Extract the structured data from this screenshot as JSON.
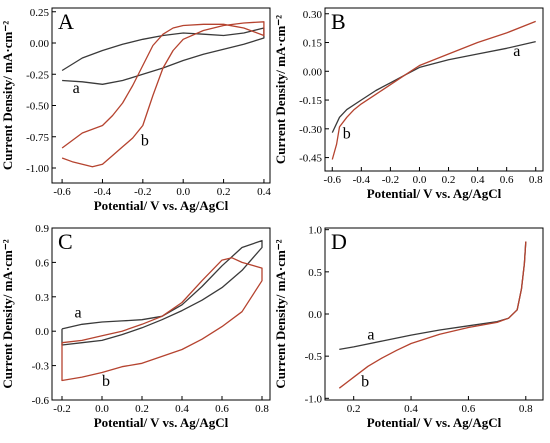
{
  "chart_data": [
    {
      "panel": "A",
      "type": "line",
      "xlabel": "Potential/ V vs. Ag/AgCl",
      "ylabel": "Current Density/ mA·cm⁻²",
      "xlim": [
        -0.65,
        0.43
      ],
      "ylim": [
        -1.12,
        0.28
      ],
      "xticks": [
        -0.6,
        -0.4,
        -0.2,
        0.0,
        0.2,
        0.4
      ],
      "xtick_labels": [
        "-0.6",
        "-0.4",
        "-0.2",
        "0.0",
        "0.2",
        "0.4"
      ],
      "yticks": [
        -1.0,
        -0.75,
        -0.5,
        -0.25,
        0.0,
        0.25
      ],
      "ytick_labels": [
        "-1.00",
        "-0.75",
        "-0.50",
        "-0.25",
        "0.00",
        "0.25"
      ],
      "series": [
        {
          "name": "a",
          "color": "#3a3a3a",
          "label_at": [
            -0.53,
            -0.4
          ],
          "x": [
            -0.6,
            -0.5,
            -0.4,
            -0.3,
            -0.2,
            -0.1,
            0.0,
            0.1,
            0.2,
            0.3,
            0.4,
            0.4,
            0.3,
            0.2,
            0.1,
            0.0,
            -0.1,
            -0.2,
            -0.3,
            -0.4,
            -0.5,
            -0.6
          ],
          "y": [
            -0.3,
            -0.31,
            -0.33,
            -0.3,
            -0.25,
            -0.2,
            -0.14,
            -0.09,
            -0.05,
            -0.01,
            0.04,
            0.12,
            0.08,
            0.06,
            0.07,
            0.08,
            0.06,
            0.03,
            -0.01,
            -0.06,
            -0.12,
            -0.22
          ]
        },
        {
          "name": "b",
          "color": "#b5432f",
          "label_at": [
            -0.19,
            -0.82
          ],
          "x": [
            -0.6,
            -0.55,
            -0.5,
            -0.45,
            -0.4,
            -0.35,
            -0.3,
            -0.25,
            -0.2,
            -0.15,
            -0.1,
            -0.05,
            0.0,
            0.1,
            0.2,
            0.3,
            0.4,
            0.4,
            0.3,
            0.2,
            0.1,
            0.0,
            -0.05,
            -0.1,
            -0.15,
            -0.2,
            -0.25,
            -0.3,
            -0.35,
            -0.4,
            -0.5,
            -0.6
          ],
          "y": [
            -0.92,
            -0.95,
            -0.97,
            -0.99,
            -0.97,
            -0.9,
            -0.83,
            -0.76,
            -0.66,
            -0.42,
            -0.2,
            -0.06,
            0.03,
            0.1,
            0.14,
            0.16,
            0.17,
            0.06,
            0.12,
            0.15,
            0.15,
            0.14,
            0.12,
            0.07,
            -0.02,
            -0.18,
            -0.34,
            -0.48,
            -0.58,
            -0.66,
            -0.72,
            -0.84
          ]
        }
      ]
    },
    {
      "panel": "B",
      "type": "line",
      "xlabel": "Potential/ V vs. Ag/AgCl",
      "ylabel": "Current Density/ mA·cm⁻²",
      "xlim": [
        -0.65,
        0.85
      ],
      "ylim": [
        -0.52,
        0.33
      ],
      "xticks": [
        -0.6,
        -0.4,
        -0.2,
        0.0,
        0.2,
        0.4,
        0.6,
        0.8
      ],
      "xtick_labels": [
        "-0.6",
        "-0.4",
        "-0.2",
        "0.0",
        "0.2",
        "0.4",
        "0.6",
        "0.8"
      ],
      "yticks": [
        -0.45,
        -0.3,
        -0.15,
        0.0,
        0.15,
        0.3
      ],
      "ytick_labels": [
        "-0.45",
        "-0.30",
        "-0.15",
        "0.00",
        "0.15",
        "0.30"
      ],
      "series": [
        {
          "name": "a",
          "color": "#3a3a3a",
          "label_at": [
            0.67,
            0.08
          ],
          "x": [
            -0.6,
            -0.55,
            -0.5,
            -0.4,
            -0.3,
            -0.2,
            -0.1,
            0.0,
            0.2,
            0.4,
            0.6,
            0.8
          ],
          "y": [
            -0.32,
            -0.24,
            -0.2,
            -0.15,
            -0.1,
            -0.06,
            -0.02,
            0.02,
            0.06,
            0.09,
            0.12,
            0.155
          ]
        },
        {
          "name": "b",
          "color": "#b5432f",
          "label_at": [
            -0.5,
            -0.35
          ],
          "x": [
            -0.6,
            -0.57,
            -0.55,
            -0.5,
            -0.45,
            -0.4,
            -0.3,
            -0.2,
            -0.1,
            0.0,
            0.2,
            0.4,
            0.6,
            0.8
          ],
          "y": [
            -0.46,
            -0.38,
            -0.29,
            -0.24,
            -0.2,
            -0.17,
            -0.12,
            -0.07,
            -0.02,
            0.03,
            0.09,
            0.15,
            0.2,
            0.26
          ]
        }
      ]
    },
    {
      "panel": "C",
      "type": "line",
      "xlabel": "Potential/ V vs. Ag/AgCl",
      "ylabel": "Current Density/ mA·cm⁻²",
      "xlim": [
        -0.25,
        0.84
      ],
      "ylim": [
        -0.6,
        0.9
      ],
      "xticks": [
        -0.2,
        0.0,
        0.2,
        0.4,
        0.6,
        0.8
      ],
      "xtick_labels": [
        "-0.2",
        "0.0",
        "0.2",
        "0.4",
        "0.6",
        "0.8"
      ],
      "yticks": [
        -0.6,
        -0.3,
        0.0,
        0.3,
        0.6,
        0.9
      ],
      "ytick_labels": [
        "-0.6",
        "-0.3",
        "0.0",
        "0.3",
        "0.6",
        "0.9"
      ],
      "series": [
        {
          "name": "a",
          "color": "#3a3a3a",
          "label_at": [
            -0.12,
            0.12
          ],
          "x": [
            -0.2,
            -0.1,
            0.0,
            0.1,
            0.2,
            0.3,
            0.4,
            0.5,
            0.6,
            0.7,
            0.8,
            0.8,
            0.7,
            0.6,
            0.5,
            0.4,
            0.3,
            0.2,
            0.1,
            0.0,
            -0.1,
            -0.2,
            -0.2
          ],
          "y": [
            0.02,
            0.06,
            0.08,
            0.09,
            0.1,
            0.13,
            0.23,
            0.39,
            0.57,
            0.73,
            0.79,
            0.73,
            0.53,
            0.38,
            0.27,
            0.18,
            0.1,
            0.03,
            -0.03,
            -0.08,
            -0.1,
            -0.12,
            0.02
          ]
        },
        {
          "name": "b",
          "color": "#b5432f",
          "label_at": [
            0.02,
            -0.48
          ],
          "x": [
            -0.2,
            -0.1,
            0.0,
            0.1,
            0.2,
            0.3,
            0.4,
            0.5,
            0.6,
            0.65,
            0.7,
            0.8,
            0.8,
            0.7,
            0.6,
            0.5,
            0.4,
            0.3,
            0.2,
            0.1,
            0.0,
            -0.1,
            -0.2,
            -0.2
          ],
          "y": [
            -0.1,
            -0.08,
            -0.04,
            0.0,
            0.06,
            0.13,
            0.25,
            0.44,
            0.62,
            0.64,
            0.6,
            0.55,
            0.44,
            0.17,
            0.04,
            -0.07,
            -0.16,
            -0.22,
            -0.28,
            -0.31,
            -0.36,
            -0.4,
            -0.43,
            -0.1
          ]
        }
      ]
    },
    {
      "panel": "D",
      "type": "line",
      "xlabel": "Potential/ V vs. Ag/AgCl",
      "ylabel": "Current Density/ mA·cm⁻²",
      "xlim": [
        0.1,
        0.86
      ],
      "ylim": [
        -1.02,
        1.02
      ],
      "xticks": [
        0.2,
        0.4,
        0.6,
        0.8
      ],
      "xtick_labels": [
        "0.2",
        "0.4",
        "0.6",
        "0.8"
      ],
      "yticks": [
        -1.0,
        -0.5,
        0.0,
        0.5,
        1.0
      ],
      "ytick_labels": [
        "-1.0",
        "-0.5",
        "0.0",
        "0.5",
        "1.0"
      ],
      "series": [
        {
          "name": "a",
          "color": "#3a3a3a",
          "label_at": [
            0.26,
            -0.3
          ],
          "x": [
            0.15,
            0.2,
            0.3,
            0.4,
            0.5,
            0.6,
            0.7,
            0.74,
            0.77,
            0.785,
            0.795,
            0.8
          ],
          "y": [
            -0.42,
            -0.39,
            -0.32,
            -0.25,
            -0.19,
            -0.14,
            -0.09,
            -0.05,
            0.05,
            0.3,
            0.6,
            0.86
          ]
        },
        {
          "name": "b",
          "color": "#b5432f",
          "label_at": [
            0.24,
            -0.86
          ],
          "x": [
            0.15,
            0.2,
            0.25,
            0.3,
            0.35,
            0.4,
            0.5,
            0.6,
            0.7,
            0.74,
            0.77,
            0.785,
            0.795,
            0.8
          ],
          "y": [
            -0.88,
            -0.75,
            -0.62,
            -0.52,
            -0.43,
            -0.35,
            -0.24,
            -0.16,
            -0.1,
            -0.05,
            0.05,
            0.3,
            0.6,
            0.86
          ]
        }
      ]
    }
  ]
}
